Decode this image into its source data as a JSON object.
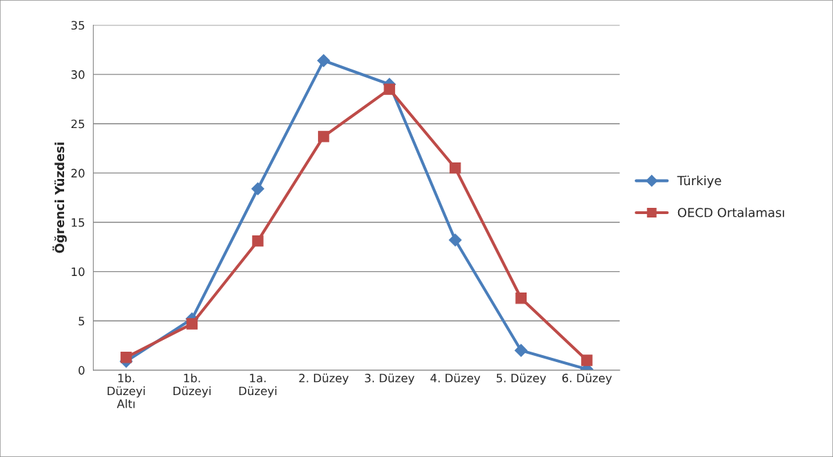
{
  "chart_data": {
    "type": "line",
    "ylabel": "Öğrenci Yüzdesi",
    "categories": [
      "1b. Düzeyi Altı",
      "1b. Düzeyi",
      "1a. Düzeyi",
      "2. Düzey",
      "3. Düzey",
      "4. Düzey",
      "5. Düzey",
      "6. Düzey"
    ],
    "series": [
      {
        "name": "Türkiye",
        "color": "#4a7ebb",
        "marker": "diamond",
        "values": [
          0.9,
          5.2,
          18.4,
          31.4,
          29.0,
          13.2,
          2.0,
          0.1
        ]
      },
      {
        "name": "OECD Ortalaması",
        "color": "#be4b48",
        "marker": "square",
        "values": [
          1.3,
          4.7,
          13.1,
          23.7,
          28.5,
          20.5,
          7.3,
          1.0
        ]
      }
    ],
    "ylim": [
      0,
      35
    ],
    "yticks": [
      0,
      5,
      10,
      15,
      20,
      25,
      30,
      35
    ],
    "grid": "y",
    "legend": "right",
    "line_style": "solid"
  }
}
